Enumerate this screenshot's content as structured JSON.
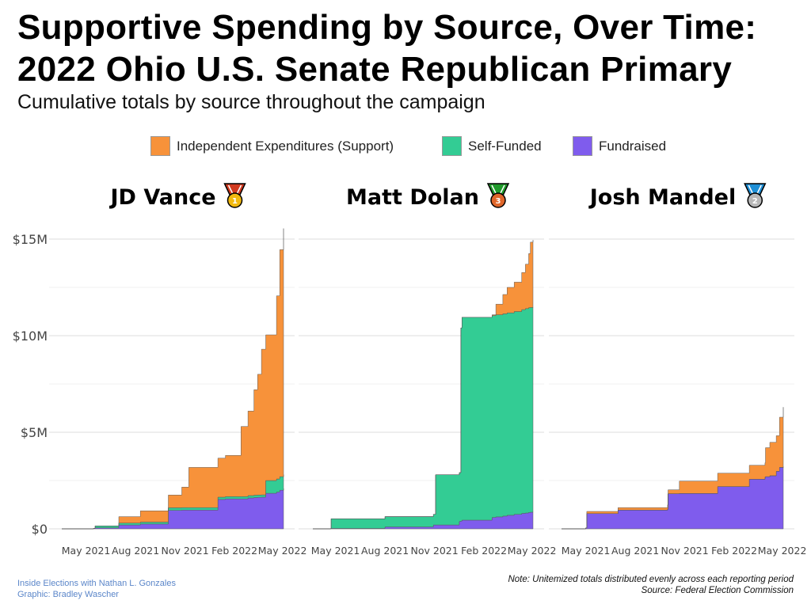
{
  "title_line1": "Supportive Spending by Source, Over Time:",
  "title_line2": "2022 Ohio U.S. Senate Republican Primary",
  "subtitle": "Cumulative totals by source throughout the campaign",
  "legend": [
    {
      "label": "Independent Expenditures (Support)",
      "color": "#F7923A"
    },
    {
      "label": "Self-Funded",
      "color": "#33CC94"
    },
    {
      "label": "Fundraised",
      "color": "#7F5CED"
    }
  ],
  "footer": {
    "credit_line1": "Inside Elections with Nathan L. Gonzales",
    "credit_line2": "Graphic: Bradley Wascher",
    "note": "Note: Unitemized totals distributed evenly across each reporting period",
    "source": "Source: Federal Election Commission"
  },
  "chart_data": {
    "type": "area",
    "stacked": true,
    "units": "USD millions",
    "series_order": [
      "Fundraised",
      "Self-Funded",
      "Independent Expenditures (Support)"
    ],
    "y_ticks": [
      0,
      5,
      10,
      15
    ],
    "y_tick_labels": [
      "$0",
      "$5M",
      "$10M",
      "$15M"
    ],
    "ylim": [
      0,
      15.6
    ],
    "x_ticks": [
      "2021-05-01",
      "2021-08-01",
      "2021-11-01",
      "2022-02-01",
      "2022-05-01"
    ],
    "x_tick_labels": [
      "May 2021",
      "Aug 2021",
      "Nov 2021",
      "Feb 2022",
      "May 2022"
    ],
    "xlim": [
      "2021-03-17",
      "2022-05-05"
    ],
    "grid": true,
    "legend_position": "top-center",
    "panels": [
      {
        "candidate": "JD Vance",
        "medal": "gold",
        "rank": "1",
        "medal_colors": {
          "ribbon": "#d23a1f",
          "disc": "#f2b90f",
          "stripe": "#ffffff"
        },
        "points": [
          [
            "2021-03-17",
            0,
            0,
            0
          ],
          [
            "2021-05-15",
            0.03,
            0,
            0
          ],
          [
            "2021-05-18",
            0.05,
            0.1,
            0
          ],
          [
            "2021-07-01",
            0.2,
            0.1,
            0.33
          ],
          [
            "2021-08-10",
            0.25,
            0.1,
            0.58
          ],
          [
            "2021-10-01",
            0.96,
            0.13,
            0.66
          ],
          [
            "2021-10-26",
            0.97,
            0.13,
            1.06
          ],
          [
            "2021-11-08",
            0.97,
            0.13,
            2.08
          ],
          [
            "2022-01-01",
            1.52,
            0.12,
            2.02
          ],
          [
            "2022-01-15",
            1.55,
            0.12,
            2.13
          ],
          [
            "2022-02-13",
            1.55,
            0.12,
            3.63
          ],
          [
            "2022-02-26",
            1.6,
            0.12,
            4.38
          ],
          [
            "2022-03-09",
            1.62,
            0.12,
            5.46
          ],
          [
            "2022-03-16",
            1.63,
            0.12,
            6.25
          ],
          [
            "2022-03-23",
            1.64,
            0.12,
            7.54
          ],
          [
            "2022-03-31",
            1.84,
            0.66,
            7.54
          ],
          [
            "2022-04-20",
            1.9,
            0.68,
            9.48
          ],
          [
            "2022-04-26",
            2.0,
            0.7,
            11.75
          ],
          [
            "2022-05-03",
            2.09,
            0.72,
            12.74
          ]
        ]
      },
      {
        "candidate": "Matt Dolan",
        "medal": "bronze",
        "rank": "3",
        "medal_colors": {
          "ribbon": "#1f9a2a",
          "disc": "#e0662a",
          "stripe": "#ffffff"
        },
        "points": [
          [
            "2021-03-20",
            0,
            0,
            0
          ],
          [
            "2021-04-22",
            0.02,
            0,
            0
          ],
          [
            "2021-04-23",
            0.02,
            0.5,
            0
          ],
          [
            "2021-08-01",
            0.1,
            0.53,
            0
          ],
          [
            "2021-10-30",
            0.2,
            0.55,
            0
          ],
          [
            "2021-11-03",
            0.2,
            2.6,
            0
          ],
          [
            "2021-12-17",
            0.38,
            2.53,
            0
          ],
          [
            "2021-12-20",
            0.4,
            10.0,
            0
          ],
          [
            "2021-12-22",
            0.45,
            10.5,
            0
          ],
          [
            "2022-02-16",
            0.59,
            10.45,
            0.04
          ],
          [
            "2022-02-23",
            0.62,
            10.46,
            0.55
          ],
          [
            "2022-03-08",
            0.66,
            10.47,
            1.0
          ],
          [
            "2022-03-16",
            0.7,
            10.48,
            1.32
          ],
          [
            "2022-03-29",
            0.75,
            10.5,
            1.52
          ],
          [
            "2022-04-12",
            0.8,
            10.55,
            1.92
          ],
          [
            "2022-04-19",
            0.82,
            10.58,
            2.3
          ],
          [
            "2022-04-25",
            0.85,
            10.6,
            2.8
          ],
          [
            "2022-04-28",
            0.86,
            10.6,
            3.38
          ],
          [
            "2022-05-03",
            0.87,
            10.58,
            3.5
          ]
        ]
      },
      {
        "candidate": "Josh Mandel",
        "medal": "silver",
        "rank": "2",
        "medal_colors": {
          "ribbon": "#1e8fd6",
          "disc": "#b8b8b8",
          "stripe": "#ffffff"
        },
        "points": [
          [
            "2021-03-17",
            0,
            0,
            0
          ],
          [
            "2021-05-01",
            0.05,
            0,
            0
          ],
          [
            "2021-05-03",
            0.79,
            0,
            0.11
          ],
          [
            "2021-06-30",
            0.97,
            0,
            0.13
          ],
          [
            "2021-09-30",
            1.02,
            0,
            0.22
          ],
          [
            "2021-10-01",
            1.82,
            0,
            0.2
          ],
          [
            "2021-10-22",
            1.83,
            0,
            0.64
          ],
          [
            "2022-01-01",
            2.19,
            0,
            0.69
          ],
          [
            "2022-03-01",
            2.57,
            0,
            0.72
          ],
          [
            "2022-03-30",
            2.68,
            0,
            0.74
          ],
          [
            "2022-03-31",
            2.7,
            0,
            1.5
          ],
          [
            "2022-04-08",
            2.75,
            0,
            1.73
          ],
          [
            "2022-04-20",
            2.98,
            0,
            1.84
          ],
          [
            "2022-04-26",
            3.18,
            0,
            2.6
          ],
          [
            "2022-05-03",
            3.21,
            0,
            3.09
          ]
        ]
      }
    ]
  }
}
